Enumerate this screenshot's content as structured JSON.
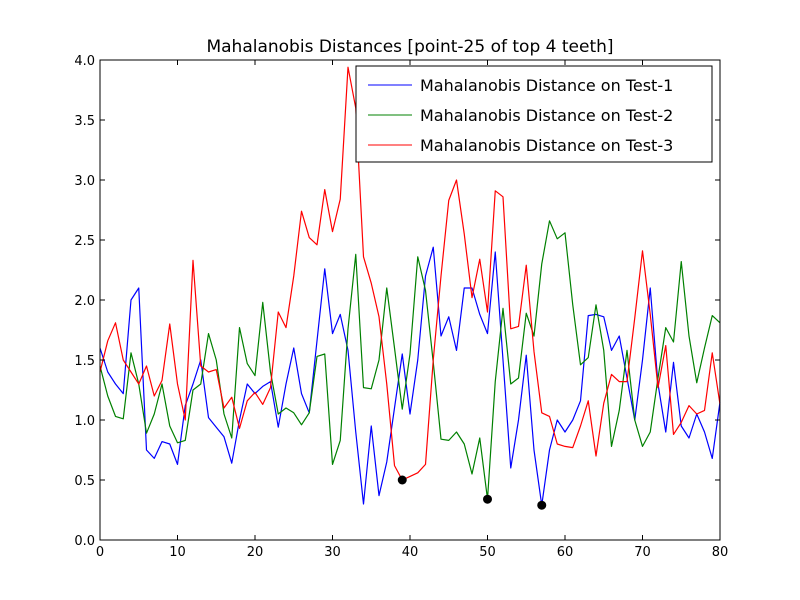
{
  "chart_data": {
    "type": "line",
    "title": "Mahalanobis Distances [point-25 of top 4 teeth]",
    "xlim": [
      0,
      80
    ],
    "ylim": [
      0.0,
      4.0
    ],
    "xticks": [
      0,
      10,
      20,
      30,
      40,
      50,
      60,
      70,
      80
    ],
    "yticks": [
      0.0,
      0.5,
      1.0,
      1.5,
      2.0,
      2.5,
      3.0,
      3.5,
      4.0
    ],
    "ytick_labels": [
      "0.0",
      "0.5",
      "1.0",
      "1.5",
      "2.0",
      "2.5",
      "3.0",
      "3.5",
      "4.0"
    ],
    "grid": false,
    "legend_position": "top-right",
    "series": [
      {
        "name": "Mahalanobis Distance on Test-1",
        "color": "#0000ff",
        "values": [
          1.6,
          1.4,
          1.3,
          1.22,
          2.0,
          2.1,
          0.75,
          0.68,
          0.82,
          0.8,
          0.63,
          1.12,
          1.3,
          1.5,
          1.02,
          0.94,
          0.86,
          0.64,
          1.0,
          1.3,
          1.22,
          1.28,
          1.32,
          0.94,
          1.3,
          1.6,
          1.22,
          1.06,
          1.66,
          2.26,
          1.72,
          1.88,
          1.58,
          0.9,
          0.3,
          0.95,
          0.37,
          0.65,
          1.1,
          1.55,
          1.05,
          1.5,
          2.2,
          2.44,
          1.7,
          1.86,
          1.58,
          2.1,
          2.1,
          1.88,
          1.72,
          2.4,
          1.5,
          0.6,
          1.0,
          1.54,
          0.75,
          0.29,
          0.75,
          1.0,
          0.9,
          1.0,
          1.16,
          1.87,
          1.88,
          1.86,
          1.58,
          1.7,
          1.35,
          1.0,
          1.5,
          2.1,
          1.3,
          0.9,
          1.48,
          0.95,
          0.85,
          1.05,
          0.9,
          0.68,
          1.15
        ]
      },
      {
        "name": "Mahalanobis Distance on Test-2",
        "color": "#008000",
        "values": [
          1.45,
          1.2,
          1.03,
          1.01,
          1.56,
          1.3,
          0.89,
          1.05,
          1.3,
          0.95,
          0.81,
          0.83,
          1.25,
          1.3,
          1.72,
          1.5,
          1.05,
          0.85,
          1.77,
          1.47,
          1.37,
          1.98,
          1.4,
          1.05,
          1.1,
          1.06,
          0.96,
          1.06,
          1.53,
          1.55,
          0.63,
          0.83,
          1.76,
          2.38,
          1.27,
          1.26,
          1.5,
          2.1,
          1.6,
          1.09,
          1.55,
          2.36,
          2.08,
          1.48,
          0.84,
          0.83,
          0.9,
          0.8,
          0.55,
          0.85,
          0.34,
          1.32,
          1.93,
          1.3,
          1.35,
          1.89,
          1.7,
          2.3,
          2.66,
          2.51,
          2.56,
          1.96,
          1.46,
          1.52,
          1.96,
          1.58,
          0.78,
          1.08,
          1.58,
          1.0,
          0.78,
          0.9,
          1.35,
          1.77,
          1.65,
          2.32,
          1.7,
          1.31,
          1.6,
          1.87,
          1.81
        ]
      },
      {
        "name": "Mahalanobis Distance on Test-3",
        "color": "#ff0000",
        "values": [
          1.4,
          1.66,
          1.81,
          1.5,
          1.4,
          1.3,
          1.45,
          1.2,
          1.33,
          1.8,
          1.3,
          1.0,
          2.33,
          1.45,
          1.4,
          1.42,
          1.1,
          1.19,
          0.93,
          1.16,
          1.23,
          1.13,
          1.27,
          1.9,
          1.77,
          2.2,
          2.74,
          2.52,
          2.46,
          2.92,
          2.57,
          2.84,
          3.94,
          3.6,
          2.36,
          2.14,
          1.86,
          1.3,
          0.62,
          0.5,
          0.53,
          0.56,
          0.63,
          1.5,
          2.2,
          2.83,
          3.0,
          2.55,
          2.02,
          2.34,
          1.9,
          2.91,
          2.86,
          1.76,
          1.78,
          2.29,
          1.57,
          1.06,
          1.03,
          0.8,
          0.78,
          0.77,
          0.95,
          1.16,
          0.7,
          1.14,
          1.38,
          1.32,
          1.32,
          1.85,
          2.41,
          1.88,
          1.27,
          1.62,
          0.88,
          0.98,
          1.12,
          1.05,
          1.08,
          1.56,
          1.13
        ]
      }
    ],
    "markers": [
      {
        "x": 39,
        "y": 0.5,
        "color": "#000000"
      },
      {
        "x": 50,
        "y": 0.34,
        "color": "#000000"
      },
      {
        "x": 57,
        "y": 0.29,
        "color": "#000000"
      }
    ]
  }
}
